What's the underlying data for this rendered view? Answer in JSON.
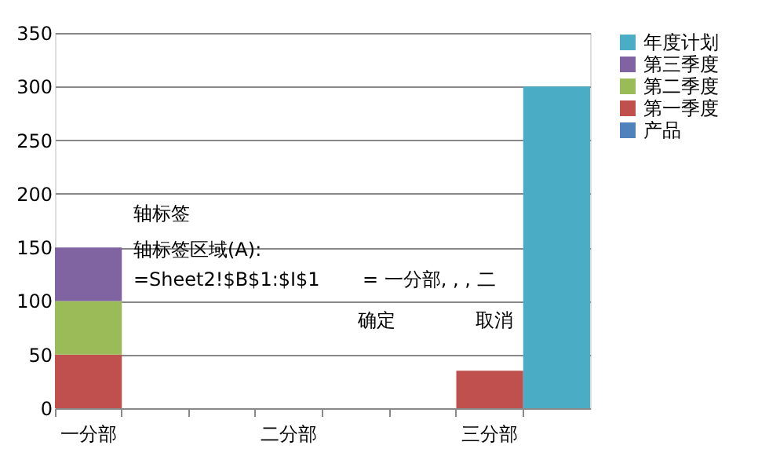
{
  "chart_data": {
    "type": "bar",
    "stacked": true,
    "categories": [
      "一分部",
      null,
      null,
      "二分部",
      null,
      null,
      "三分部",
      null
    ],
    "series": [
      {
        "name": "产品",
        "color": "#4f81bd",
        "values": [
          null,
          null,
          null,
          null,
          null,
          null,
          null,
          null
        ]
      },
      {
        "name": "第一季度",
        "color": "#c0504d",
        "values": [
          50,
          null,
          null,
          null,
          null,
          null,
          35,
          null
        ]
      },
      {
        "name": "第二季度",
        "color": "#9bbb59",
        "values": [
          50,
          null,
          null,
          null,
          null,
          null,
          null,
          null
        ]
      },
      {
        "name": "第三季度",
        "color": "#8064a2",
        "values": [
          50,
          null,
          null,
          null,
          null,
          null,
          null,
          null
        ]
      },
      {
        "name": "年度计划",
        "color": "#4bacc6",
        "values": [
          null,
          null,
          null,
          null,
          null,
          null,
          null,
          300
        ]
      }
    ],
    "ylim": [
      0,
      350
    ],
    "yticks": [
      0,
      50,
      100,
      150,
      200,
      250,
      300,
      350
    ],
    "grid": "y",
    "legend": "right",
    "annotations": [
      "轴标签",
      "轴标签区域(A):",
      "=Sheet2!$B$1:$I$1",
      "= 一分部, , , 二",
      "确定",
      "取消"
    ]
  }
}
